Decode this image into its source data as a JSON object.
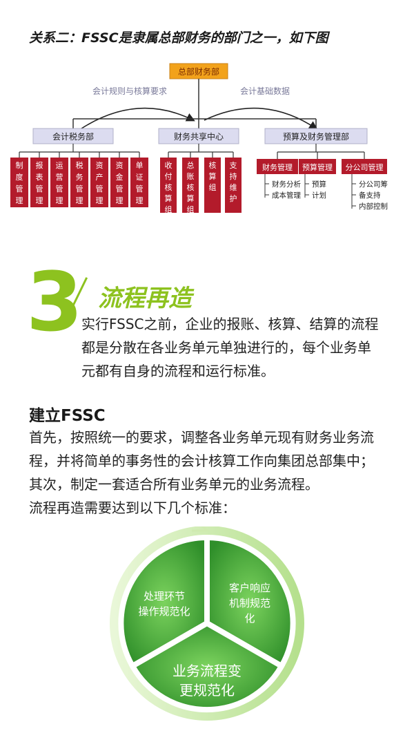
{
  "heading": "关系二：FSSC是隶属总部财务的部门之一，如下图",
  "org": {
    "root": "总部财务部",
    "arrow_left": "会计规则与核算要求",
    "arrow_right": "会计基础数据",
    "departments": [
      {
        "name": "会计税务部",
        "children": [
          "制度管理",
          "报表管理",
          "运营管理",
          "税务管理",
          "资产管理",
          "资金管理",
          "单证管理"
        ]
      },
      {
        "name": "财务共享中心",
        "children": [
          "收付核算组",
          "总账核算组",
          "核算组",
          "支持维护"
        ]
      },
      {
        "name": "预算及财务管理部",
        "children": [
          "财务管理",
          "预算管理",
          "分公司管理"
        ],
        "details": [
          [
            "财务分析",
            "成本管理"
          ],
          [
            "预算",
            "计划"
          ],
          [
            "分公司筹",
            "备支持",
            "内部控制"
          ]
        ]
      }
    ]
  },
  "section": {
    "number": "3",
    "title": "流程再造",
    "intro": [
      "实行FSSC之前，企业的报账、核算、结算的流程",
      "都是分散在各业务单元单独进行的，每个业务单",
      "元都有自身的流程和运行标准。"
    ]
  },
  "build": {
    "title": "建立FSSC",
    "lines": [
      "首先，按照统一的要求，调整各业务单元现有财务业务流",
      "程，并将简单的事务性的会计核算工作向集团总部集中；",
      "其次，制定一套适合所有业务单元的业务流程。",
      "流程再造需要达到以下几个标准："
    ]
  },
  "cycle": {
    "segments": [
      {
        "lines": [
          "处理环节",
          "操作规范化"
        ]
      },
      {
        "lines": [
          "客户响应",
          "机制规范",
          "化"
        ]
      },
      {
        "lines": [
          "业务流程变",
          "更规范化"
        ]
      }
    ]
  },
  "colors": {
    "org_box": "#b31b2b",
    "root_box": "#f2a21b",
    "dept_box": "#dcdcf0",
    "accent_green": "#8dc21f",
    "cycle_green": "#4caf3a"
  }
}
